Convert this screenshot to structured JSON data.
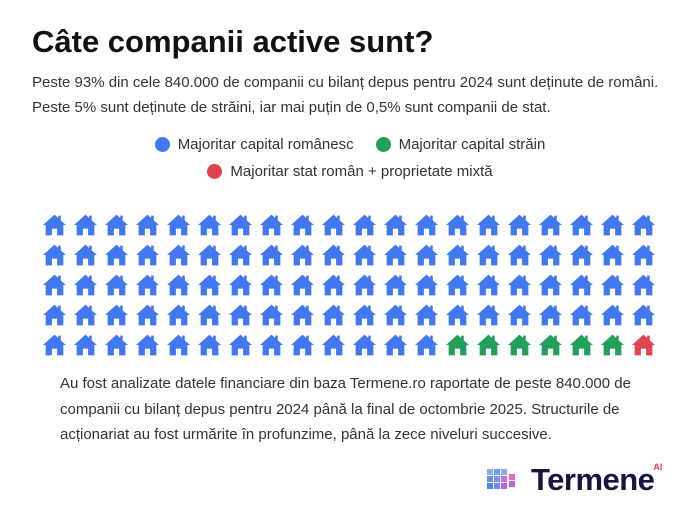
{
  "title": "Câte companii active sunt?",
  "subtitle": "Peste 93% din cele 840.000 de companii cu bilanț depus pentru 2024 sunt deținute de români. Peste 5% sunt deținute de străini, iar mai puțin de 0,5% sunt companii de stat.",
  "chart_data": {
    "type": "waffle",
    "title": "Câte companii active sunt?",
    "grid": {
      "rows": 5,
      "columns": 20
    },
    "unit": "1 icon = 1% of companies",
    "series": [
      {
        "name": "Majoritar capital românesc",
        "value": 93,
        "color": "#4178f0"
      },
      {
        "name": "Majoritar capital străin",
        "value": 6,
        "color": "#22a05a"
      },
      {
        "name": "Majoritar stat român + proprietate mixtă",
        "value": 1,
        "color": "#e0434f"
      }
    ],
    "legend_position": "top"
  },
  "footer": "Au fost analizate datele financiare din baza Termene.ro raportate de peste 840.000 de companii cu bilanț depus pentru 2024 până la final de octombrie 2025. Structurile de acționariat au fost urmărite în profunzime, până la zece niveluri succesive.",
  "logo": {
    "text": "Termene",
    "badge": "AI"
  }
}
